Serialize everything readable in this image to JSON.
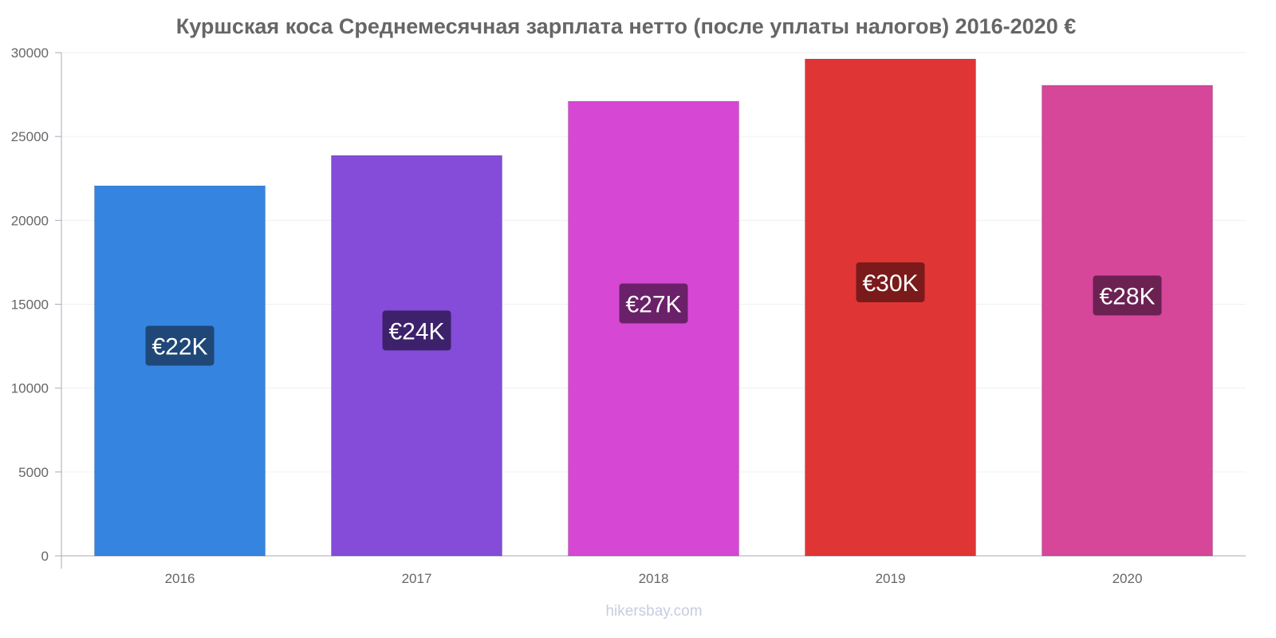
{
  "chart_data": {
    "type": "bar",
    "title": "Куршская коса Среднемесячная зарплата нетто (после уплаты налогов) 2016-2020 €",
    "categories": [
      "2016",
      "2017",
      "2018",
      "2019",
      "2020"
    ],
    "values": [
      22060,
      23870,
      27100,
      29620,
      28050
    ],
    "data_labels": [
      "€22K",
      "€24K",
      "€27K",
      "€30K",
      "€28K"
    ],
    "colors": [
      "#3584e0",
      "#844cd8",
      "#d647d4",
      "#e03535",
      "#d64699"
    ],
    "label_colors": [
      "#1f4777",
      "#3d226b",
      "#6a2169",
      "#7a1a1a",
      "#6b2252"
    ],
    "yticks": [
      "0",
      "5000",
      "10000",
      "15000",
      "20000",
      "25000",
      "30000"
    ],
    "ylim": [
      0,
      30000
    ],
    "xlabel": "",
    "ylabel": "",
    "grid": true
  },
  "watermark": "hikersbay.com"
}
